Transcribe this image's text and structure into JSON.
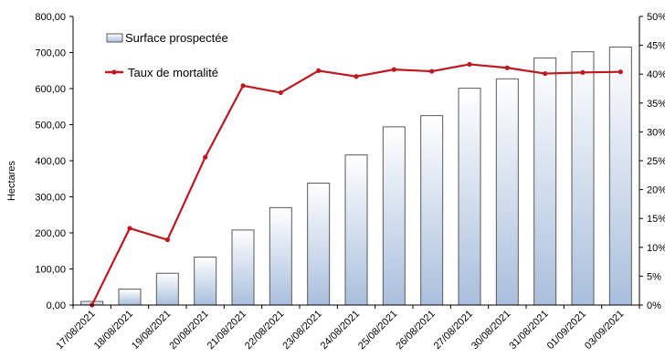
{
  "chart_data": {
    "type": "bar+line",
    "categories": [
      "17/08/2021",
      "18/08/2021",
      "19/08/2021",
      "20/08/2021",
      "21/08/2021",
      "22/08/2021",
      "23/08/2021",
      "24/08/2021",
      "25/08/2021",
      "26/08/2021",
      "27/08/2021",
      "30/08/2021",
      "31/08/2021",
      "01/09/2021",
      "03/09/2021"
    ],
    "ylabel": "Hectares",
    "ylim": [
      0,
      800
    ],
    "y_ticks": [
      "0,00",
      "100,00",
      "200,00",
      "300,00",
      "400,00",
      "500,00",
      "600,00",
      "700,00",
      "800,00"
    ],
    "y2lim": [
      0,
      50
    ],
    "y2_ticks": [
      "0%",
      "5%",
      "10%",
      "15%",
      "20%",
      "25%",
      "30%",
      "35%",
      "40%",
      "45%",
      "50%"
    ],
    "legend_position": "top-left",
    "grid": false,
    "series": [
      {
        "name": "Surface prospectée",
        "type": "bar",
        "axis": "left",
        "values": [
          10,
          44,
          88,
          133,
          208,
          270,
          338,
          416,
          494,
          525,
          601,
          627,
          685,
          702,
          715
        ]
      },
      {
        "name": "Taux de mortalité",
        "type": "line",
        "axis": "right",
        "values": [
          0,
          13.3,
          11.3,
          25.6,
          38,
          36.8,
          40.6,
          39.6,
          40.8,
          40.5,
          41.7,
          41.1,
          40.1,
          40.3,
          40.4
        ]
      }
    ],
    "colors": {
      "bar_top": "#ffffff",
      "bar_bottom": "#a9bfdd",
      "bar_stroke": "#5a5a5a",
      "line": "#c0181e"
    }
  }
}
